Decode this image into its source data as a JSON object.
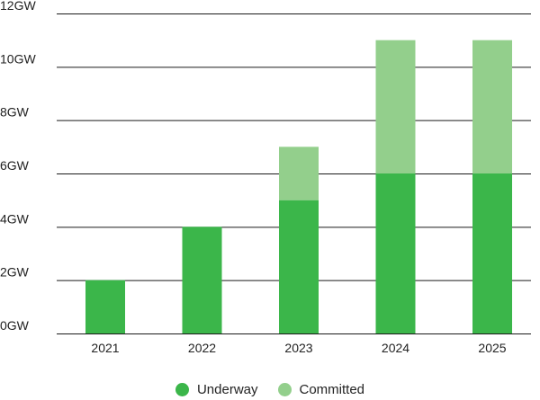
{
  "chart_data": {
    "type": "bar",
    "stacked": true,
    "categories": [
      "2021",
      "2022",
      "2023",
      "2024",
      "2025"
    ],
    "series": [
      {
        "name": "Underway",
        "values": [
          2,
          4,
          5,
          6,
          6
        ],
        "color": "#3bb64a"
      },
      {
        "name": "Committed",
        "values": [
          0,
          0,
          2,
          5,
          5
        ],
        "color": "#93cf8c"
      }
    ],
    "ylim": [
      0,
      12
    ],
    "y_ticks": [
      "0GW",
      "2GW",
      "4GW",
      "6GW",
      "8GW",
      "10GW",
      "12GW"
    ],
    "y_tick_values": [
      0,
      2,
      4,
      6,
      8,
      10,
      12
    ],
    "grid": true,
    "legend_position": "bottom"
  }
}
